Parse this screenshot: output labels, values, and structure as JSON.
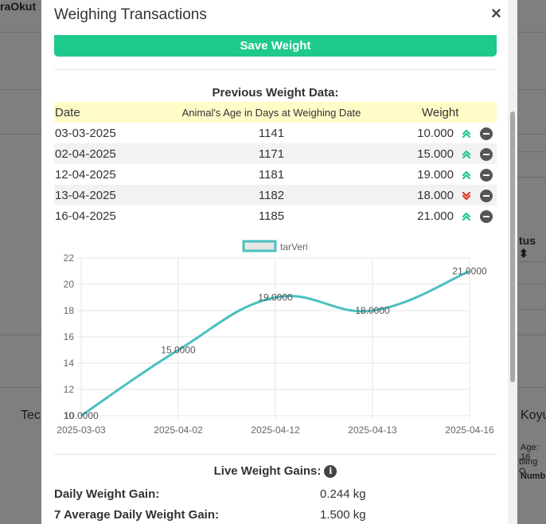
{
  "background": {
    "app_name": "raOkut",
    "texts": {
      "tec": "Tec",
      "koyun": "Koyun",
      "age": "Age: 16",
      "sibling": "bling O",
      "number": "Numb",
      "status_sort": "tus ⬍"
    }
  },
  "modal": {
    "title": "Weighing Transactions",
    "close_symbol": "×",
    "save_button": "Save Weight"
  },
  "previous_weights": {
    "title": "Previous Weight Data:",
    "headers": {
      "date": "Date",
      "age": "Animal's Age in Days at Weighing Date",
      "weight": "Weight"
    },
    "rows": [
      {
        "date": "03-03-2025",
        "age": "1141",
        "weight": "10.000",
        "trend": "up"
      },
      {
        "date": "02-04-2025",
        "age": "1171",
        "weight": "15.000",
        "trend": "up"
      },
      {
        "date": "12-04-2025",
        "age": "1181",
        "weight": "19.000",
        "trend": "up"
      },
      {
        "date": "13-04-2025",
        "age": "1182",
        "weight": "18.000",
        "trend": "down"
      },
      {
        "date": "16-04-2025",
        "age": "1185",
        "weight": "21.000",
        "trend": "up"
      }
    ]
  },
  "chart_data": {
    "type": "line",
    "title": "",
    "xlabel": "",
    "ylabel": "",
    "categories": [
      "2025-03-03",
      "2025-04-02",
      "2025-04-12",
      "2025-04-13",
      "2025-04-16"
    ],
    "series": [
      {
        "name": "tarVeri",
        "values": [
          10,
          15,
          19,
          18,
          21
        ],
        "labels": [
          "10.0000",
          "15.0000",
          "19.0000",
          "18.0000",
          "21.0000"
        ],
        "color": "#4bbfbf"
      }
    ],
    "ylim": [
      10,
      22
    ],
    "yticks": [
      "10",
      "12",
      "14",
      "16",
      "18",
      "20",
      "22"
    ],
    "grid": true,
    "legend": "top-center"
  },
  "gains": {
    "title": "Live Weight Gains:",
    "info_symbol": "i",
    "daily_label": "Daily Weight Gain:",
    "daily_value": "0.244 kg",
    "avg7_label": "7 Average Daily Weight Gain:",
    "avg7_value": "1.500 kg"
  },
  "colors": {
    "accent": "#1ec98c",
    "trend_up": "#1ec98c",
    "trend_down": "#e0341f",
    "header_bg": "#fffcc8"
  },
  "icons": {
    "trend_up": "double-chevron-up-icon",
    "trend_down": "double-chevron-down-icon",
    "remove": "minus-circle-icon",
    "info": "info-circle-icon",
    "close": "close-icon"
  }
}
